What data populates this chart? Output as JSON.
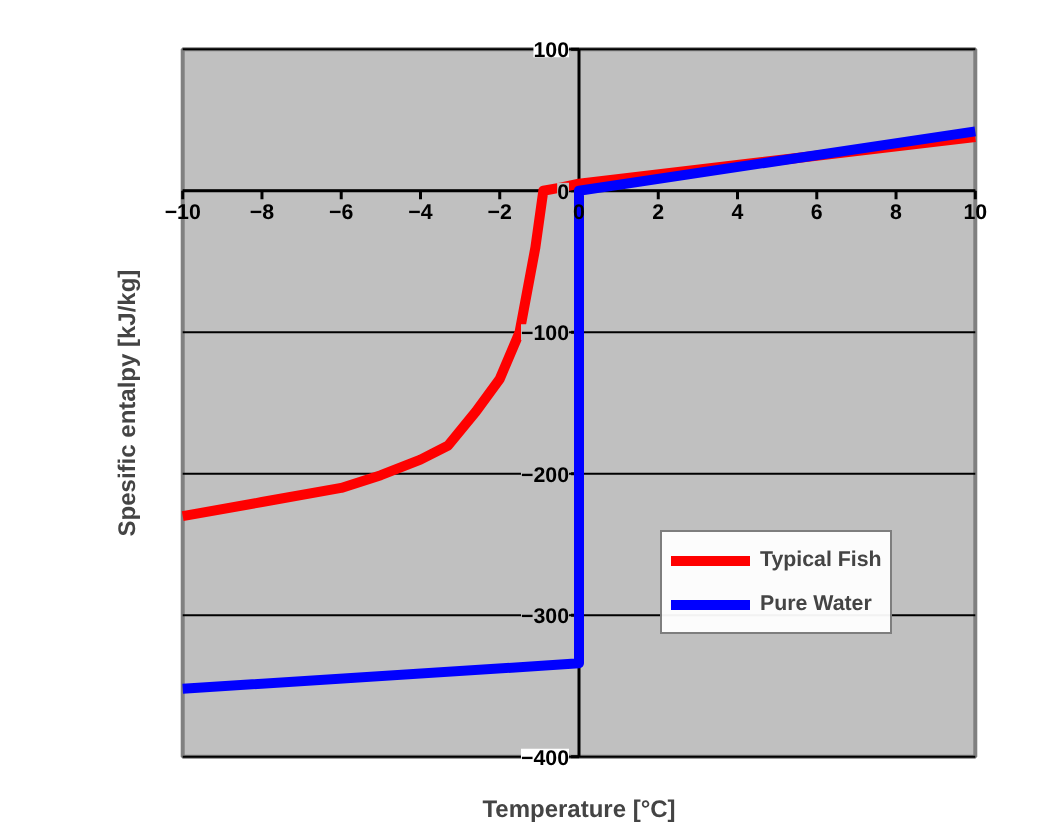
{
  "chart_data": {
    "type": "line",
    "xlabel": "Temperature [°C]",
    "ylabel": "Spesific entalpy [kJ/kg]",
    "xlim": [
      -10,
      10
    ],
    "ylim": [
      -400,
      100
    ],
    "xticks": [
      -10,
      -8,
      -6,
      -4,
      -2,
      0,
      2,
      4,
      6,
      8,
      10
    ],
    "yticks": [
      -400,
      -300,
      -200,
      -100,
      0,
      100
    ],
    "grid": "y",
    "legend": "right",
    "line_style": "solid",
    "marker": "none",
    "series": [
      {
        "name": "Typical Fish",
        "color": "#ff0000",
        "x": [
          -10,
          -8,
          -6,
          -5,
          -4,
          -3.3,
          -2.6,
          -2,
          -1.5,
          -1.1,
          -0.9,
          -0.5,
          0,
          10
        ],
        "values": [
          -230,
          -220,
          -210,
          -201,
          -190,
          -180,
          -156,
          -133,
          -100,
          -40,
          0,
          2,
          5,
          38
        ]
      },
      {
        "name": "Pure Water",
        "color": "#0000ff",
        "x": [
          -10,
          0,
          0,
          10
        ],
        "values": [
          -352,
          -334,
          0,
          42
        ]
      }
    ]
  }
}
